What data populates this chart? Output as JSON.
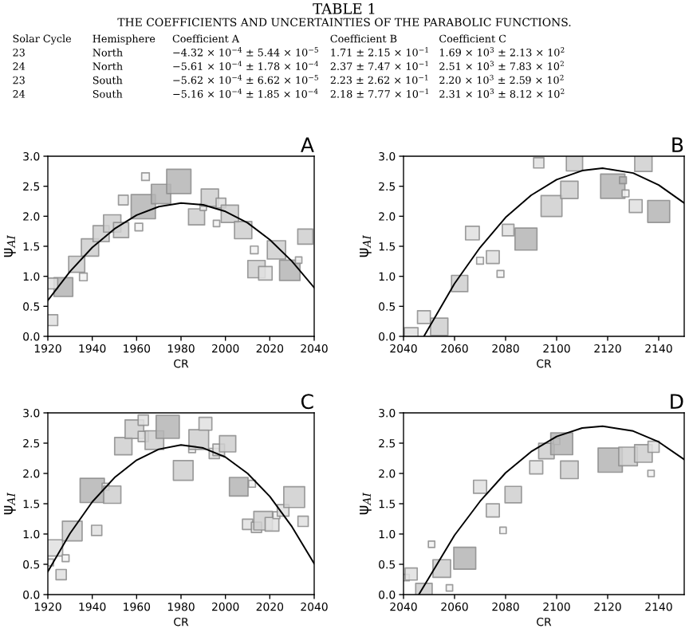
{
  "chart_data": [
    {
      "type": "other",
      "title": "TABLE 1",
      "subtitle": "THE COEFFICIENTS AND UNCERTAINTIES OF THE PARABOLIC FUNCTIONS.",
      "annotations": [
        "Solar Cycle",
        "Hemisphere",
        "Coefficient A",
        "Coefficient B",
        "Coefficient C",
        "23",
        "North",
        "−4.32 × 10$^{−4}$ ± 5.44 × 10$^{−5}$",
        "1.71 ± 2.15 × 10$^{−1}$",
        "1.69 × 10$^{3}$ ± 2.13 × 10$^{2}$",
        "24",
        "North",
        "−5.61 × 10$^{−4}$ ± 1.78 × 10$^{−4}$",
        "2.37 ± 7.47 × 10$^{−1}$",
        "2.51 × 10$^{3}$ ± 7.83 × 10$^{2}$",
        "23",
        "South",
        "−5.62 × 10$^{−4}$ ± 6.62 × 10$^{−5}$",
        "2.23 ± 2.62 × 10$^{−1}$",
        "2.20 × 10$^{3}$ ± 2.59 × 10$^{2}$",
        "24",
        "South",
        "−5.16 × 10$^{−4}$ ± 1.85 × 10$^{−4}$",
        "2.18 ± 7.77 × 10$^{−1}$",
        "2.31 × 10$^{3}$ ± 8.12 × 10$^{2}$"
      ]
    },
    {
      "type": "bubble",
      "title": "A",
      "xlabel": "CR",
      "ylabel": "ψ$_{AI}$",
      "xlim": [
        1920,
        2040
      ],
      "xticks": [
        1920,
        1940,
        1960,
        1980,
        2000,
        2020,
        2040
      ],
      "ylim": [
        0,
        3
      ],
      "yticks": [
        {
          "value": 0,
          "label": "0.0"
        },
        {
          "value": 0.5,
          "label": "0.5"
        },
        {
          "value": 1,
          "label": "1.0"
        },
        {
          "value": 1.5,
          "label": "1.5"
        },
        {
          "value": 2,
          "label": "2.0"
        },
        {
          "value": 2.5,
          "label": "2.5"
        },
        {
          "value": 3,
          "label": "3.0"
        }
      ],
      "series": [
        {
          "type": "bubble",
          "marker": "square",
          "x": [
            1927,
            1922,
            1922,
            1933,
            1936,
            1939,
            1944,
            1949,
            1953,
            1954,
            1961,
            1963,
            1964,
            1971,
            1979,
            1987,
            1990,
            1993,
            1996,
            1998,
            2002,
            2008,
            2013,
            2014,
            2018,
            2023,
            2029,
            2033,
            2036
          ],
          "values": [
            0.82,
            0.88,
            0.27,
            1.2,
            0.99,
            1.48,
            1.71,
            1.88,
            1.77,
            2.27,
            1.82,
            2.16,
            2.66,
            2.37,
            2.58,
            1.99,
            2.15,
            2.31,
            1.88,
            2.22,
            2.04,
            1.77,
            1.44,
            1.12,
            1.05,
            1.44,
            1.1,
            1.27,
            1.66
          ],
          "sizes": [
            0.6,
            0.2,
            0.2,
            0.44,
            0.1,
            0.51,
            0.44,
            0.51,
            0.39,
            0.16,
            0.1,
            1,
            0.1,
            0.64,
            1,
            0.44,
            0.07,
            0.51,
            0.07,
            0.16,
            0.51,
            0.51,
            0.1,
            0.51,
            0.31,
            0.57,
            0.71,
            0.07,
            0.39
          ],
          "colors": [
            "#b5b5b5",
            "#e0e0e0",
            "#e0e0e0",
            "#cfcfcf",
            "#f2f2f2",
            "#cfcfcf",
            "#cfcfcf",
            "#cfcfcf",
            "#cfcfcf",
            "#e0e0e0",
            "#f2f2f2",
            "#b5b5b5",
            "#f2f2f2",
            "#b5b5b5",
            "#b5b5b5",
            "#cfcfcf",
            "#f2f2f2",
            "#cfcfcf",
            "#f2f2f2",
            "#e0e0e0",
            "#cfcfcf",
            "#cfcfcf",
            "#f2f2f2",
            "#cfcfcf",
            "#e0e0e0",
            "#cfcfcf",
            "#b5b5b5",
            "#f2f2f2",
            "#cfcfcf"
          ]
        },
        {
          "type": "line",
          "color": "#000000",
          "x": [
            1920,
            1930,
            1940,
            1950,
            1960,
            1970,
            1980,
            1990,
            2000,
            2010,
            2020,
            2030,
            2040
          ],
          "values": [
            0.6,
            1.08,
            1.48,
            1.79,
            2.02,
            2.16,
            2.22,
            2.19,
            2.08,
            1.89,
            1.61,
            1.25,
            0.81
          ]
        }
      ]
    },
    {
      "type": "bubble",
      "title": "B",
      "xlabel": "CR",
      "ylabel": "ψ$_{AI}$",
      "xlim": [
        2040,
        2150
      ],
      "xticks": [
        2040,
        2060,
        2080,
        2100,
        2120,
        2140
      ],
      "ylim": [
        0,
        3
      ],
      "yticks": [
        {
          "value": 0,
          "label": "0.0"
        },
        {
          "value": 0.5,
          "label": "0.5"
        },
        {
          "value": 1,
          "label": "1.0"
        },
        {
          "value": 1.5,
          "label": "1.5"
        },
        {
          "value": 2,
          "label": "2.0"
        },
        {
          "value": 2.5,
          "label": "2.5"
        },
        {
          "value": 3,
          "label": "3.0"
        }
      ],
      "series": [
        {
          "type": "bubble",
          "marker": "square",
          "x": [
            2043,
            2048,
            2054,
            2062,
            2067,
            2070,
            2075,
            2078,
            2081,
            2088,
            2093,
            2098,
            2105,
            2107,
            2122,
            2126,
            2127,
            2131,
            2134,
            2140
          ],
          "values": [
            0.03,
            0.32,
            0.16,
            0.88,
            1.72,
            1.26,
            1.32,
            1.04,
            1.77,
            1.62,
            2.89,
            2.17,
            2.44,
            2.89,
            2.5,
            2.6,
            2.38,
            2.17,
            2.89,
            2.08
          ],
          "sizes": [
            0.32,
            0.28,
            0.51,
            0.45,
            0.32,
            0.08,
            0.28,
            0.08,
            0.23,
            0.82,
            0.18,
            0.74,
            0.51,
            0.45,
            1,
            0.08,
            0.08,
            0.28,
            0.51,
            0.82
          ],
          "colors": [
            "#e0e0e0",
            "#e0e0e0",
            "#cfcfcf",
            "#cfcfcf",
            "#e0e0e0",
            "#f2f2f2",
            "#e0e0e0",
            "#f2f2f2",
            "#e0e0e0",
            "#b5b5b5",
            "#e0e0e0",
            "#cfcfcf",
            "#cfcfcf",
            "#cfcfcf",
            "#b5b5b5",
            "#b5b5b5",
            "#f2f2f2",
            "#e0e0e0",
            "#cfcfcf",
            "#b5b5b5"
          ]
        },
        {
          "type": "line",
          "color": "#000000",
          "x": [
            2048,
            2060,
            2070,
            2080,
            2090,
            2100,
            2110,
            2118,
            2130,
            2140,
            2150
          ],
          "values": [
            0,
            0.88,
            1.48,
            1.98,
            2.35,
            2.61,
            2.76,
            2.8,
            2.72,
            2.52,
            2.22
          ]
        }
      ]
    },
    {
      "type": "bubble",
      "title": "C",
      "xlabel": "CR",
      "ylabel": "ψ$_{AI}$",
      "xlim": [
        1920,
        2040
      ],
      "xticks": [
        1920,
        1940,
        1960,
        1980,
        2000,
        2020,
        2040
      ],
      "ylim": [
        0,
        3
      ],
      "yticks": [
        {
          "value": 0,
          "label": "0.0"
        },
        {
          "value": 0.5,
          "label": "0.5"
        },
        {
          "value": 1,
          "label": "1.0"
        },
        {
          "value": 1.5,
          "label": "1.5"
        },
        {
          "value": 2,
          "label": "2.0"
        },
        {
          "value": 2.5,
          "label": "2.5"
        },
        {
          "value": 3,
          "label": "3.0"
        }
      ],
      "series": [
        {
          "type": "bubble",
          "marker": "square",
          "x": [
            1923,
            1921,
            1928,
            1926,
            1931,
            1940,
            1942,
            1946,
            1949,
            1954,
            1959,
            1963,
            1963,
            1968,
            1974,
            1981,
            1985,
            1988,
            1991,
            1995,
            1997,
            2001,
            2006,
            2012,
            2010,
            2014,
            2017,
            2021,
            2023,
            2026,
            2031,
            2035
          ],
          "values": [
            0.77,
            0.53,
            0.6,
            0.33,
            1.05,
            1.72,
            1.06,
            1.78,
            1.65,
            2.45,
            2.73,
            2.88,
            2.61,
            2.55,
            2.77,
            2.05,
            2.4,
            2.56,
            2.82,
            2.33,
            2.39,
            2.49,
            1.78,
            1.83,
            1.16,
            1.11,
            1.22,
            1.16,
            1.31,
            1.39,
            1.61,
            1.21
          ],
          "sizes": [
            0.45,
            0.08,
            0.08,
            0.18,
            0.66,
            1,
            0.18,
            0.08,
            0.51,
            0.51,
            0.59,
            0.18,
            0.18,
            0.59,
            0.91,
            0.66,
            0.08,
            0.66,
            0.28,
            0.18,
            0.23,
            0.45,
            0.59,
            0.08,
            0.18,
            0.18,
            0.59,
            0.32,
            0.08,
            0.23,
            0.74,
            0.18
          ],
          "colors": [
            "#e0e0e0",
            "#f2f2f2",
            "#f2f2f2",
            "#e0e0e0",
            "#cfcfcf",
            "#b5b5b5",
            "#e0e0e0",
            "#f2f2f2",
            "#cfcfcf",
            "#cfcfcf",
            "#cfcfcf",
            "#e0e0e0",
            "#e0e0e0",
            "#cfcfcf",
            "#b5b5b5",
            "#cfcfcf",
            "#f2f2f2",
            "#cfcfcf",
            "#e0e0e0",
            "#e0e0e0",
            "#e0e0e0",
            "#cfcfcf",
            "#b5b5b5",
            "#f2f2f2",
            "#e0e0e0",
            "#e0e0e0",
            "#cfcfcf",
            "#e0e0e0",
            "#f2f2f2",
            "#e0e0e0",
            "#cfcfcf",
            "#e0e0e0"
          ]
        },
        {
          "type": "line",
          "color": "#000000",
          "x": [
            1920,
            1930,
            1940,
            1950,
            1960,
            1970,
            1980,
            1990,
            2000,
            2010,
            2020,
            2030,
            2040
          ],
          "values": [
            0.38,
            1.01,
            1.53,
            1.93,
            2.22,
            2.4,
            2.47,
            2.42,
            2.27,
            2.0,
            1.62,
            1.12,
            0.51
          ]
        }
      ]
    },
    {
      "type": "bubble",
      "title": "D",
      "xlabel": "CR",
      "ylabel": "ψ$_{AI}$",
      "xlim": [
        2040,
        2150
      ],
      "xticks": [
        2040,
        2060,
        2080,
        2100,
        2120,
        2140
      ],
      "ylim": [
        0,
        3
      ],
      "yticks": [
        {
          "value": 0,
          "label": "0.0"
        },
        {
          "value": 0.5,
          "label": "0.5"
        },
        {
          "value": 1,
          "label": "1.0"
        },
        {
          "value": 1.5,
          "label": "1.5"
        },
        {
          "value": 2,
          "label": "2.0"
        },
        {
          "value": 2.5,
          "label": "2.5"
        },
        {
          "value": 3,
          "label": "3.0"
        }
      ],
      "series": [
        {
          "type": "bubble",
          "marker": "square",
          "x": [
            2041,
            2043,
            2048,
            2051,
            2055,
            2058,
            2064,
            2070,
            2075,
            2079,
            2083,
            2092,
            2096,
            2100,
            2102,
            2105,
            2121,
            2128,
            2134,
            2137,
            2138
          ],
          "values": [
            0.28,
            0.34,
            0.05,
            0.83,
            0.43,
            0.11,
            0.6,
            1.78,
            1.39,
            1.06,
            1.65,
            2.1,
            2.37,
            2.53,
            2.49,
            2.06,
            2.22,
            2.28,
            2.33,
            2.0,
            2.44
          ],
          "sizes": [
            0.07,
            0.25,
            0.46,
            0.07,
            0.53,
            0.07,
            0.82,
            0.29,
            0.29,
            0.07,
            0.46,
            0.29,
            0.41,
            0.07,
            0.82,
            0.53,
            1,
            0.59,
            0.53,
            0.07,
            0.21
          ],
          "colors": [
            "#f2f2f2",
            "#e0e0e0",
            "#cfcfcf",
            "#f2f2f2",
            "#cfcfcf",
            "#f2f2f2",
            "#b5b5b5",
            "#e0e0e0",
            "#e0e0e0",
            "#f2f2f2",
            "#cfcfcf",
            "#e0e0e0",
            "#cfcfcf",
            "#f2f2f2",
            "#b5b5b5",
            "#cfcfcf",
            "#b5b5b5",
            "#cfcfcf",
            "#cfcfcf",
            "#f2f2f2",
            "#e0e0e0"
          ]
        },
        {
          "type": "line",
          "color": "#000000",
          "x": [
            2046,
            2060,
            2070,
            2080,
            2090,
            2100,
            2110,
            2118,
            2130,
            2140,
            2150
          ],
          "values": [
            0,
            0.98,
            1.54,
            2.01,
            2.36,
            2.61,
            2.75,
            2.78,
            2.7,
            2.52,
            2.23
          ]
        }
      ]
    }
  ]
}
